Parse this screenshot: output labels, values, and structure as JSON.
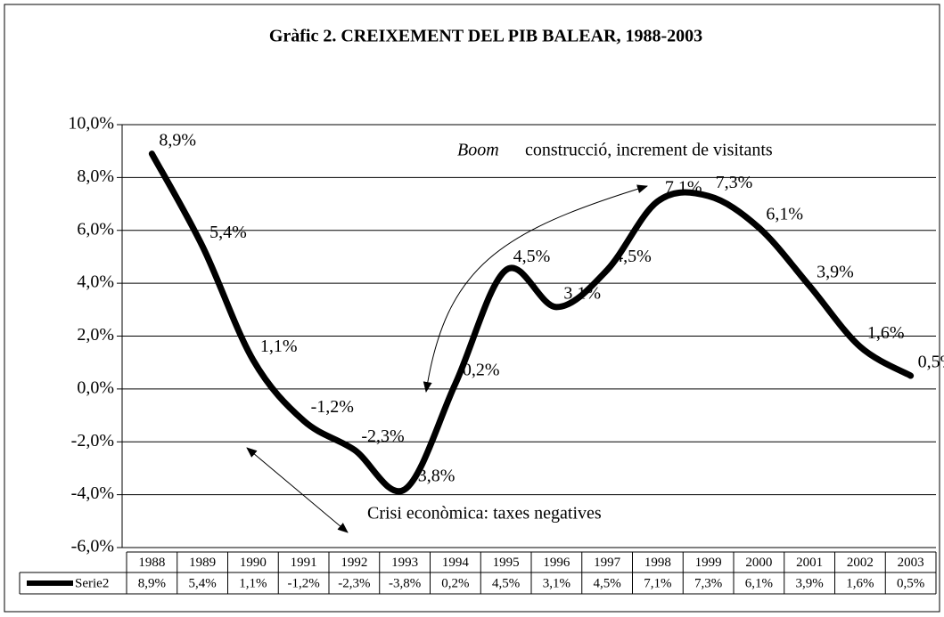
{
  "chart_data": {
    "type": "line",
    "title": "Gràfic 2. CREIXEMENT DEL PIB BALEAR, 1988-2003",
    "categories": [
      "1988",
      "1989",
      "1990",
      "1991",
      "1992",
      "1993",
      "1994",
      "1995",
      "1996",
      "1997",
      "1998",
      "1999",
      "2000",
      "2001",
      "2002",
      "2003"
    ],
    "series": [
      {
        "name": "Serie2",
        "color": "#000000",
        "values": [
          8.9,
          5.4,
          1.1,
          -1.2,
          -2.3,
          -3.8,
          0.2,
          4.5,
          3.1,
          4.5,
          7.1,
          7.3,
          6.1,
          3.9,
          1.6,
          0.5
        ],
        "value_labels": [
          "8,9%",
          "5,4%",
          "1,1%",
          "-1,2%",
          "-2,3%",
          "-3,8%",
          "0,2%",
          "4,5%",
          "3,1%",
          "4,5%",
          "7,1%",
          "7,3%",
          "6,1%",
          "3,9%",
          "1,6%",
          "0,5%"
        ]
      }
    ],
    "ylim": [
      -6,
      10
    ],
    "yticks": [
      {
        "value": -6,
        "label": "-6,0%"
      },
      {
        "value": -4,
        "label": "-4,0%"
      },
      {
        "value": -2,
        "label": "-2,0%"
      },
      {
        "value": 0,
        "label": "0,0%"
      },
      {
        "value": 2,
        "label": "2,0%"
      },
      {
        "value": 4,
        "label": "4,0%"
      },
      {
        "value": 6,
        "label": "6,0%"
      },
      {
        "value": 8,
        "label": "8,0%"
      },
      {
        "value": 10,
        "label": "10,0%"
      }
    ],
    "grid": true,
    "annotations": [
      "Boom",
      "construcció, increment de visitants",
      "Crisi econòmica: taxes negatives"
    ]
  }
}
